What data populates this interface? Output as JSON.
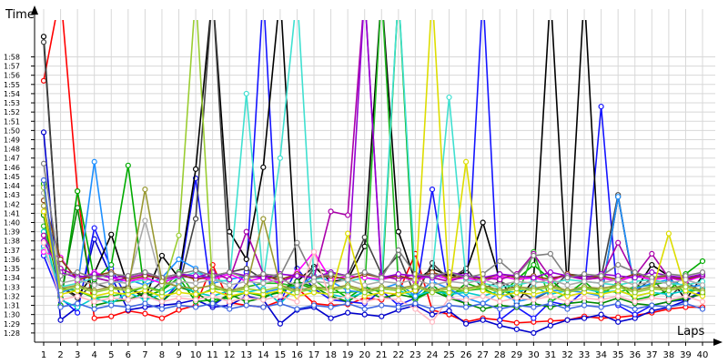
{
  "chart_data": {
    "type": "line",
    "ylabel": "Time",
    "xlabel": "Laps",
    "x": [
      1,
      2,
      3,
      4,
      5,
      6,
      7,
      8,
      9,
      10,
      11,
      12,
      13,
      14,
      15,
      16,
      17,
      18,
      19,
      20,
      21,
      22,
      23,
      24,
      25,
      26,
      27,
      28,
      29,
      30,
      31,
      32,
      33,
      34,
      35,
      36,
      37,
      38,
      39,
      40
    ],
    "xlim": [
      1,
      40
    ],
    "ylim": [
      87,
      122
    ],
    "grid": true,
    "yticks": [
      88,
      89,
      90,
      91,
      92,
      93,
      94,
      95,
      96,
      97,
      98,
      99,
      100,
      101,
      102,
      103,
      104,
      105,
      106,
      107,
      108,
      109,
      110,
      111,
      112,
      113,
      114,
      115,
      116,
      117,
      118
    ],
    "ytick_labels": [
      "1:28",
      "1:29",
      "1:30",
      "1:31",
      "1:32",
      "1:33",
      "1:34",
      "1:35",
      "1:36",
      "1:37",
      "1:38",
      "1:39",
      "1:40",
      "1:41",
      "1:42",
      "1:43",
      "1:44",
      "1:45",
      "1:46",
      "1:47",
      "1:48",
      "1:49",
      "1:50",
      "1:51",
      "1:52",
      "1:53",
      "1:54",
      "1:55",
      "1:56",
      "1:57",
      "1:58"
    ],
    "xtick_labels": [
      "1",
      "2",
      "3",
      "4",
      "5",
      "6",
      "7",
      "8",
      "9",
      "10",
      "11",
      "12",
      "13",
      "14",
      "15",
      "16",
      "17",
      "18",
      "19",
      "20",
      "21",
      "22",
      "23",
      "24",
      "25",
      "26",
      "27",
      "28",
      "29",
      "30",
      "31",
      "32",
      "33",
      "34",
      "35",
      "36",
      "37",
      "38",
      "39",
      "40"
    ],
    "series": [
      {
        "color": "#ff0000",
        "values": [
          115.4,
          125,
          103.4,
          89.6,
          89.8,
          90.4,
          90.1,
          89.6,
          90.5,
          91.0,
          95.4,
          91.3,
          91.0,
          90.8,
          91.5,
          92.9,
          91.2,
          91.0,
          91.1,
          91.8,
          91.6,
          92.4,
          96.6,
          90.5,
          90.0,
          89.2,
          89.6,
          89.4,
          89.1,
          89.2,
          89.3,
          89.4,
          89.8,
          89.6,
          89.7,
          89.9,
          90.2,
          90.6,
          90.8,
          90.8
        ]
      },
      {
        "color": "#0000cc",
        "values": [
          109.8,
          89.4,
          90.8,
          98.2,
          94.1,
          90.5,
          90.8,
          91.0,
          91.2,
          91.6,
          90.8,
          91.0,
          92.0,
          91.6,
          89.0,
          90.5,
          90.8,
          89.6,
          90.2,
          90.0,
          89.8,
          90.5,
          91.0,
          90.0,
          90.4,
          89.0,
          89.4,
          88.8,
          88.4,
          88.0,
          88.8,
          89.4,
          89.6,
          90.0,
          89.2,
          89.6,
          90.4,
          90.8,
          91.5,
          92.4
        ]
      },
      {
        "color": "#1414ff",
        "values": [
          96.4,
          91.8,
          90.2,
          99.4,
          95.0,
          91.6,
          92.0,
          91.4,
          93.4,
          104.8,
          91.0,
          92.2,
          94.6,
          125,
          91.4,
          95.0,
          92.8,
          91.6,
          91.4,
          91.2,
          92.6,
          91.0,
          91.8,
          103.6,
          92.0,
          91.2,
          125,
          89.4,
          90.8,
          89.6,
          91.4,
          91.0,
          92.6,
          112.6,
          91.0,
          90.0,
          91.0,
          91.4,
          91.6,
          92.6
        ]
      },
      {
        "color": "#000000",
        "values": [
          120.2,
          93.0,
          92.0,
          94.5,
          98.7,
          93.0,
          91.8,
          96.4,
          94.0,
          105.8,
          125,
          99.0,
          96.0,
          106.0,
          125,
          93.6,
          95.2,
          93.6,
          93.8,
          97.4,
          125,
          99.0,
          93.6,
          95.0,
          94.2,
          94.6,
          100.0,
          93.8,
          91.2,
          93.8,
          125,
          92.6,
          125,
          91.8,
          102.8,
          92.6,
          95.4,
          94.2,
          91.6,
          94.2
        ]
      },
      {
        "color": "#444444",
        "values": [
          119.6,
          93.0,
          91.8,
          93.4,
          92.8,
          93.0,
          92.0,
          93.6,
          93.0,
          100.4,
          125,
          94.6,
          95.0,
          93.8,
          94.2,
          92.6,
          95.0,
          94.6,
          94.2,
          98.4,
          94.4,
          96.5,
          92.0,
          95.6,
          93.8,
          95.0,
          92.8,
          93.6,
          92.8,
          91.6,
          92.6,
          94.4,
          94.2,
          94.0,
          103.0,
          92.4,
          94.0,
          91.8,
          93.6,
          92.4
        ]
      },
      {
        "color": "#00aa00",
        "values": [
          104.2,
          91.0,
          103.4,
          93.8,
          95.4,
          106.2,
          92.0,
          92.6,
          94.0,
          91.4,
          91.6,
          91.8,
          92.4,
          92.0,
          92.4,
          93.4,
          92.8,
          93.0,
          91.8,
          93.0,
          92.4,
          125,
          91.6,
          93.2,
          91.8,
          93.4,
          92.8,
          92.0,
          93.8,
          95.4,
          93.8,
          92.2,
          93.6,
          92.0,
          93.6,
          91.6,
          92.0,
          92.6,
          94.4,
          95.8
        ]
      },
      {
        "color": "#22bb22",
        "values": [
          99.6,
          92.8,
          92.6,
          91.8,
          92.0,
          92.4,
          93.0,
          92.6,
          94.6,
          92.0,
          92.8,
          92.6,
          93.0,
          93.4,
          93.4,
          93.0,
          93.8,
          92.4,
          92.4,
          92.6,
          125,
          93.2,
          91.6,
          92.6,
          92.4,
          92.6,
          92.8,
          92.8,
          91.8,
          96.8,
          91.4,
          92.4,
          93.0,
          92.6,
          92.4,
          93.0,
          93.2,
          93.6,
          92.4,
          92.8
        ]
      },
      {
        "color": "#008800",
        "values": [
          100.8,
          91.8,
          101.6,
          91.0,
          91.4,
          91.6,
          92.4,
          91.4,
          93.0,
          92.4,
          91.2,
          92.2,
          91.4,
          91.8,
          92.6,
          93.6,
          93.0,
          92.0,
          91.4,
          92.6,
          91.8,
          92.2,
          91.8,
          92.6,
          91.8,
          91.2,
          90.6,
          91.0,
          90.8,
          91.2,
          90.8,
          91.2,
          91.4,
          91.2,
          91.8,
          91.2,
          91.0,
          91.4,
          91.8,
          92.2
        ]
      },
      {
        "color": "#00cccc",
        "values": [
          99.0,
          91.6,
          90.8,
          91.8,
          91.2,
          92.4,
          91.6,
          92.2,
          93.2,
          92.4,
          92.0,
          92.6,
          92.4,
          92.8,
          91.2,
          93.0,
          92.4,
          92.2,
          91.8,
          92.4,
          92.8,
          92.6,
          92.0,
          92.6,
          92.2,
          92.4,
          92.0,
          92.6,
          92.4,
          93.0,
          92.2,
          92.6,
          92.8,
          92.4,
          92.6,
          92.0,
          92.4,
          92.2,
          92.6,
          92.8
        ]
      },
      {
        "color": "#1e90ff",
        "values": [
          97.4,
          92.4,
          93.0,
          106.6,
          93.4,
          93.8,
          93.2,
          94.0,
          96.0,
          95.0,
          93.4,
          93.8,
          94.2,
          92.4,
          92.8,
          93.0,
          94.2,
          93.6,
          92.6,
          92.4,
          92.8,
          93.4,
          92.0,
          93.6,
          92.8,
          91.8,
          91.2,
          92.4,
          91.4,
          91.8,
          92.6,
          92.6,
          92.4,
          92.0,
          102.8,
          92.8,
          93.4,
          93.8,
          93.0,
          93.2
        ]
      },
      {
        "color": "#40e0d0",
        "values": [
          97.0,
          93.0,
          93.4,
          94.0,
          93.6,
          93.4,
          93.8,
          93.6,
          94.0,
          94.6,
          93.8,
          93.6,
          114.0,
          93.6,
          107.0,
          125,
          93.8,
          94.2,
          93.6,
          94.0,
          93.6,
          125,
          93.8,
          94.2,
          113.6,
          93.8,
          93.4,
          93.0,
          93.2,
          93.6,
          93.4,
          93.8,
          93.6,
          93.4,
          93.2,
          93.6,
          93.8,
          93.4,
          93.2,
          93.6
        ]
      },
      {
        "color": "#ff00ff",
        "values": [
          96.8,
          96.2,
          93.6,
          94.6,
          94.0,
          93.6,
          94.0,
          93.4,
          94.2,
          94.0,
          93.8,
          94.4,
          93.6,
          94.0,
          93.4,
          94.6,
          96.8,
          93.8,
          94.2,
          94.0,
          93.8,
          94.2,
          93.6,
          94.4,
          93.8,
          94.0,
          93.6,
          94.2,
          93.8,
          94.0,
          93.6,
          94.4,
          93.8,
          94.0,
          93.6,
          94.2,
          93.8,
          94.0,
          93.6,
          94.2
        ]
      },
      {
        "color": "#aa00aa",
        "values": [
          98.6,
          95.0,
          94.2,
          94.0,
          93.6,
          94.0,
          94.4,
          93.8,
          94.2,
          94.0,
          94.6,
          93.8,
          99.0,
          94.4,
          93.6,
          94.2,
          94.0,
          101.2,
          100.8,
          125,
          94.2,
          93.8,
          94.4,
          94.0,
          93.6,
          94.2,
          94.0,
          93.8,
          94.4,
          96.6,
          94.0,
          94.2,
          93.8,
          94.0,
          97.8,
          94.2,
          96.6,
          94.0,
          93.8,
          94.2
        ]
      },
      {
        "color": "#8b4513",
        "values": [
          102.4,
          96.0,
          93.8,
          94.2,
          94.6,
          93.8,
          94.2,
          94.0,
          94.4,
          93.8,
          94.2,
          94.6,
          94.0,
          94.2,
          93.8,
          94.4,
          94.0,
          94.2,
          93.8,
          94.4,
          94.0,
          94.2,
          93.8,
          94.6,
          94.0,
          94.2,
          93.8,
          94.4,
          94.0,
          94.2,
          93.8,
          94.4,
          94.0,
          94.2,
          93.8,
          94.4,
          94.0,
          94.2,
          93.8,
          94.4
        ]
      },
      {
        "color": "#9400d3",
        "values": [
          98.0,
          94.6,
          94.0,
          94.4,
          94.0,
          94.2,
          94.6,
          94.0,
          94.4,
          94.2,
          94.0,
          94.6,
          94.2,
          94.0,
          94.4,
          94.2,
          94.0,
          94.6,
          94.2,
          125,
          94.0,
          94.4,
          94.2,
          94.0,
          94.6,
          94.2,
          94.0,
          94.4,
          94.2,
          94.0,
          94.6,
          94.2,
          94.0,
          94.4,
          94.2,
          94.0,
          94.6,
          94.2,
          94.0,
          94.4
        ]
      },
      {
        "color": "#808080",
        "values": [
          106.4,
          94.2,
          94.6,
          94.0,
          94.4,
          94.2,
          94.6,
          94.0,
          94.4,
          94.8,
          94.2,
          94.6,
          94.0,
          94.4,
          94.2,
          97.8,
          94.0,
          94.4,
          94.2,
          94.6,
          94.0,
          97.0,
          94.4,
          94.2,
          94.6,
          94.0,
          94.4,
          95.8,
          94.2,
          96.4,
          96.6,
          94.0,
          94.4,
          94.2,
          95.4,
          94.6,
          94.0,
          94.4,
          94.2,
          94.6
        ]
      },
      {
        "color": "#aaaaaa",
        "values": [
          103.2,
          93.4,
          93.8,
          93.2,
          93.6,
          93.4,
          100.2,
          93.2,
          93.6,
          93.4,
          93.8,
          93.2,
          93.6,
          93.4,
          93.8,
          93.2,
          93.6,
          93.4,
          93.8,
          93.2,
          93.6,
          93.4,
          93.8,
          93.2,
          93.6,
          93.4,
          93.8,
          93.2,
          93.6,
          93.4,
          93.8,
          93.2,
          93.6,
          93.4,
          93.8,
          93.2,
          93.6,
          93.4,
          93.8,
          93.2
        ]
      },
      {
        "color": "#999933",
        "values": [
          101.8,
          92.8,
          93.2,
          92.6,
          93.0,
          92.8,
          103.6,
          93.6,
          93.0,
          92.8,
          93.2,
          92.6,
          93.0,
          100.4,
          93.2,
          92.6,
          93.0,
          92.8,
          93.2,
          92.6,
          93.0,
          92.8,
          93.2,
          92.6,
          93.0,
          92.8,
          93.2,
          92.6,
          93.0,
          92.8,
          93.2,
          92.6,
          93.0,
          92.8,
          93.2,
          92.6,
          93.0,
          92.8,
          93.2,
          92.6
        ]
      },
      {
        "color": "#dddd00",
        "values": [
          101.2,
          92.2,
          92.6,
          92.0,
          92.4,
          92.2,
          92.6,
          92.0,
          92.4,
          92.2,
          92.6,
          92.0,
          92.4,
          92.2,
          92.6,
          92.0,
          92.4,
          92.2,
          98.8,
          92.0,
          92.4,
          92.2,
          92.6,
          125,
          92.4,
          106.6,
          92.6,
          92.0,
          92.4,
          92.2,
          92.6,
          92.0,
          92.4,
          92.2,
          92.6,
          92.0,
          92.4,
          98.8,
          92.6,
          92.0
        ]
      },
      {
        "color": "#9acd32",
        "values": [
          103.8,
          92.6,
          93.0,
          92.4,
          92.8,
          92.6,
          93.0,
          92.4,
          98.6,
          125,
          93.0,
          92.4,
          92.8,
          92.6,
          93.0,
          92.4,
          92.8,
          92.6,
          93.0,
          92.4,
          92.8,
          92.6,
          93.0,
          92.4,
          92.8,
          92.6,
          93.0,
          92.4,
          92.8,
          92.6,
          93.0,
          92.4,
          92.8,
          92.6,
          93.0,
          92.4,
          92.8,
          92.6,
          93.0,
          92.4
        ]
      },
      {
        "color": "#ffb6c1",
        "values": [
          97.8,
          91.6,
          92.0,
          91.4,
          91.8,
          91.6,
          92.0,
          91.4,
          91.8,
          91.6,
          92.0,
          91.4,
          91.8,
          91.6,
          92.0,
          91.4,
          96.8,
          91.6,
          92.0,
          91.4,
          91.8,
          91.6,
          90.6,
          89.2,
          91.8,
          91.6,
          92.0,
          91.4,
          91.8,
          91.6,
          92.0,
          91.4,
          91.8,
          91.6,
          92.0,
          91.4,
          91.8,
          91.6,
          92.0,
          91.4
        ]
      },
      {
        "color": "#4169e1",
        "values": [
          104.6,
          90.8,
          91.2,
          90.6,
          91.0,
          90.8,
          91.2,
          90.6,
          91.0,
          90.8,
          91.2,
          90.6,
          91.0,
          90.8,
          91.2,
          90.6,
          91.0,
          90.8,
          91.2,
          90.6,
          91.0,
          90.8,
          91.2,
          90.6,
          91.0,
          90.8,
          91.2,
          90.6,
          91.0,
          90.8,
          91.2,
          90.6,
          91.0,
          90.8,
          91.2,
          90.6,
          91.0,
          90.8,
          91.2,
          90.6
        ]
      }
    ]
  }
}
